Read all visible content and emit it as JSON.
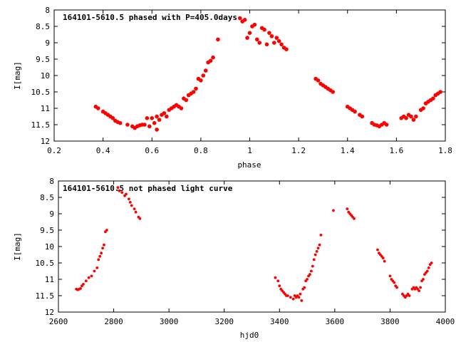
{
  "chart_data": [
    {
      "type": "scatter",
      "title": "164101-5610.5 phased with P=405.0days",
      "xlabel": "phase",
      "ylabel": "I[mag]",
      "xlim": [
        0.2,
        1.8
      ],
      "ylim": [
        12,
        8
      ],
      "y_reversed": true,
      "xticks": [
        "0.2",
        "0.4",
        "0.6",
        "0.8",
        "1",
        "1.2",
        "1.4",
        "1.6",
        "1.8"
      ],
      "yticks": [
        "8",
        "8.5",
        "9",
        "9.5",
        "10",
        "10.5",
        "11",
        "11.5",
        "12"
      ],
      "grid": false,
      "marker_color": "#ff0000",
      "series": [
        {
          "points": [
            [
              0.37,
              10.95
            ],
            [
              0.38,
              11.0
            ],
            [
              0.4,
              11.1
            ],
            [
              0.41,
              11.15
            ],
            [
              0.42,
              11.2
            ],
            [
              0.43,
              11.25
            ],
            [
              0.44,
              11.3
            ],
            [
              0.45,
              11.38
            ],
            [
              0.46,
              11.42
            ],
            [
              0.47,
              11.45
            ],
            [
              0.5,
              11.5
            ],
            [
              0.52,
              11.55
            ],
            [
              0.53,
              11.6
            ],
            [
              0.54,
              11.55
            ],
            [
              0.55,
              11.52
            ],
            [
              0.56,
              11.5
            ],
            [
              0.57,
              11.5
            ],
            [
              0.58,
              11.3
            ],
            [
              0.59,
              11.55
            ],
            [
              0.6,
              11.3
            ],
            [
              0.61,
              11.45
            ],
            [
              0.62,
              11.65
            ],
            [
              0.62,
              11.25
            ],
            [
              0.63,
              11.35
            ],
            [
              0.64,
              11.2
            ],
            [
              0.65,
              11.15
            ],
            [
              0.66,
              11.25
            ],
            [
              0.67,
              11.05
            ],
            [
              0.68,
              11.0
            ],
            [
              0.69,
              10.95
            ],
            [
              0.7,
              10.9
            ],
            [
              0.71,
              10.95
            ],
            [
              0.72,
              11.0
            ],
            [
              0.73,
              10.7
            ],
            [
              0.74,
              10.75
            ],
            [
              0.75,
              10.6
            ],
            [
              0.76,
              10.55
            ],
            [
              0.77,
              10.5
            ],
            [
              0.78,
              10.4
            ],
            [
              0.79,
              10.1
            ],
            [
              0.8,
              10.15
            ],
            [
              0.81,
              10.0
            ],
            [
              0.82,
              9.85
            ],
            [
              0.83,
              9.6
            ],
            [
              0.84,
              9.55
            ],
            [
              0.85,
              9.45
            ],
            [
              0.87,
              8.9
            ],
            [
              0.96,
              8.25
            ],
            [
              0.97,
              8.35
            ],
            [
              0.98,
              8.3
            ],
            [
              0.99,
              8.85
            ],
            [
              1.0,
              8.7
            ],
            [
              1.01,
              8.5
            ],
            [
              1.02,
              8.45
            ],
            [
              1.03,
              8.9
            ],
            [
              1.04,
              9.0
            ],
            [
              1.05,
              8.55
            ],
            [
              1.06,
              8.6
            ],
            [
              1.07,
              9.05
            ],
            [
              1.08,
              8.7
            ],
            [
              1.09,
              8.8
            ],
            [
              1.1,
              9.0
            ],
            [
              1.11,
              8.85
            ],
            [
              1.12,
              8.95
            ],
            [
              1.13,
              9.05
            ],
            [
              1.14,
              9.15
            ],
            [
              1.15,
              9.2
            ],
            [
              1.27,
              10.1
            ],
            [
              1.28,
              10.15
            ],
            [
              1.29,
              10.25
            ],
            [
              1.3,
              10.3
            ],
            [
              1.31,
              10.35
            ],
            [
              1.32,
              10.4
            ],
            [
              1.33,
              10.45
            ],
            [
              1.34,
              10.5
            ],
            [
              1.4,
              10.95
            ],
            [
              1.41,
              11.0
            ],
            [
              1.42,
              11.05
            ],
            [
              1.43,
              11.1
            ],
            [
              1.45,
              11.2
            ],
            [
              1.46,
              11.25
            ],
            [
              1.5,
              11.45
            ],
            [
              1.51,
              11.5
            ],
            [
              1.52,
              11.52
            ],
            [
              1.53,
              11.55
            ],
            [
              1.54,
              11.5
            ],
            [
              1.55,
              11.45
            ],
            [
              1.56,
              11.5
            ],
            [
              1.62,
              11.3
            ],
            [
              1.63,
              11.25
            ],
            [
              1.64,
              11.3
            ],
            [
              1.65,
              11.2
            ],
            [
              1.66,
              11.25
            ],
            [
              1.67,
              11.35
            ],
            [
              1.68,
              11.25
            ],
            [
              1.7,
              11.05
            ],
            [
              1.71,
              11.0
            ],
            [
              1.72,
              10.85
            ],
            [
              1.73,
              10.8
            ],
            [
              1.74,
              10.75
            ],
            [
              1.75,
              10.7
            ],
            [
              1.76,
              10.6
            ],
            [
              1.77,
              10.55
            ],
            [
              1.78,
              10.5
            ]
          ]
        }
      ]
    },
    {
      "type": "scatter",
      "title": "164101-5610.5 not phased light curve",
      "xlabel": "hjd0",
      "ylabel": "I[mag]",
      "xlim": [
        2600,
        4000
      ],
      "ylim": [
        12,
        8
      ],
      "y_reversed": true,
      "xticks": [
        "2600",
        "2800",
        "3000",
        "3200",
        "3400",
        "3600",
        "3800",
        "4000"
      ],
      "yticks": [
        "8",
        "8.5",
        "9",
        "9.5",
        "10",
        "10.5",
        "11",
        "11.5",
        "12"
      ],
      "grid": false,
      "marker_color": "#ff0000",
      "series": [
        {
          "points": [
            [
              2665,
              11.3
            ],
            [
              2670,
              11.32
            ],
            [
              2675,
              11.3
            ],
            [
              2680,
              11.28
            ],
            [
              2685,
              11.2
            ],
            [
              2690,
              11.15
            ],
            [
              2700,
              11.05
            ],
            [
              2710,
              10.95
            ],
            [
              2720,
              10.9
            ],
            [
              2730,
              10.75
            ],
            [
              2740,
              10.65
            ],
            [
              2745,
              10.4
            ],
            [
              2750,
              10.3
            ],
            [
              2755,
              10.2
            ],
            [
              2760,
              10.05
            ],
            [
              2765,
              9.95
            ],
            [
              2770,
              9.55
            ],
            [
              2775,
              9.5
            ],
            [
              2815,
              8.2
            ],
            [
              2820,
              8.3
            ],
            [
              2830,
              8.35
            ],
            [
              2840,
              8.45
            ],
            [
              2845,
              8.4
            ],
            [
              2855,
              8.55
            ],
            [
              2860,
              8.65
            ],
            [
              2865,
              8.75
            ],
            [
              2875,
              8.85
            ],
            [
              2880,
              8.95
            ],
            [
              2890,
              9.1
            ],
            [
              2895,
              9.15
            ],
            [
              3385,
              10.95
            ],
            [
              3395,
              11.05
            ],
            [
              3400,
              11.2
            ],
            [
              3405,
              11.3
            ],
            [
              3410,
              11.35
            ],
            [
              3415,
              11.4
            ],
            [
              3420,
              11.45
            ],
            [
              3425,
              11.5
            ],
            [
              3430,
              11.5
            ],
            [
              3440,
              11.55
            ],
            [
              3450,
              11.6
            ],
            [
              3455,
              11.5
            ],
            [
              3460,
              11.55
            ],
            [
              3465,
              11.5
            ],
            [
              3470,
              11.55
            ],
            [
              3475,
              11.45
            ],
            [
              3480,
              11.65
            ],
            [
              3485,
              11.3
            ],
            [
              3490,
              11.25
            ],
            [
              3495,
              11.05
            ],
            [
              3500,
              11.0
            ],
            [
              3505,
              10.9
            ],
            [
              3510,
              10.85
            ],
            [
              3515,
              10.75
            ],
            [
              3520,
              10.6
            ],
            [
              3525,
              10.4
            ],
            [
              3530,
              10.25
            ],
            [
              3535,
              10.15
            ],
            [
              3540,
              10.05
            ],
            [
              3545,
              9.95
            ],
            [
              3550,
              9.65
            ],
            [
              3595,
              8.9
            ],
            [
              3645,
              8.85
            ],
            [
              3650,
              8.95
            ],
            [
              3655,
              9.0
            ],
            [
              3660,
              9.05
            ],
            [
              3665,
              9.1
            ],
            [
              3670,
              9.15
            ],
            [
              3755,
              10.1
            ],
            [
              3760,
              10.2
            ],
            [
              3765,
              10.25
            ],
            [
              3770,
              10.3
            ],
            [
              3775,
              10.35
            ],
            [
              3780,
              10.45
            ],
            [
              3800,
              10.9
            ],
            [
              3805,
              11.0
            ],
            [
              3810,
              11.05
            ],
            [
              3815,
              11.1
            ],
            [
              3820,
              11.2
            ],
            [
              3825,
              11.25
            ],
            [
              3845,
              11.45
            ],
            [
              3850,
              11.5
            ],
            [
              3855,
              11.55
            ],
            [
              3860,
              11.5
            ],
            [
              3865,
              11.45
            ],
            [
              3870,
              11.5
            ],
            [
              3880,
              11.3
            ],
            [
              3885,
              11.25
            ],
            [
              3890,
              11.3
            ],
            [
              3895,
              11.25
            ],
            [
              3900,
              11.3
            ],
            [
              3905,
              11.35
            ],
            [
              3910,
              11.25
            ],
            [
              3915,
              11.05
            ],
            [
              3920,
              11.0
            ],
            [
              3925,
              10.85
            ],
            [
              3930,
              10.8
            ],
            [
              3935,
              10.75
            ],
            [
              3940,
              10.65
            ],
            [
              3945,
              10.55
            ],
            [
              3950,
              10.5
            ]
          ]
        }
      ]
    }
  ]
}
